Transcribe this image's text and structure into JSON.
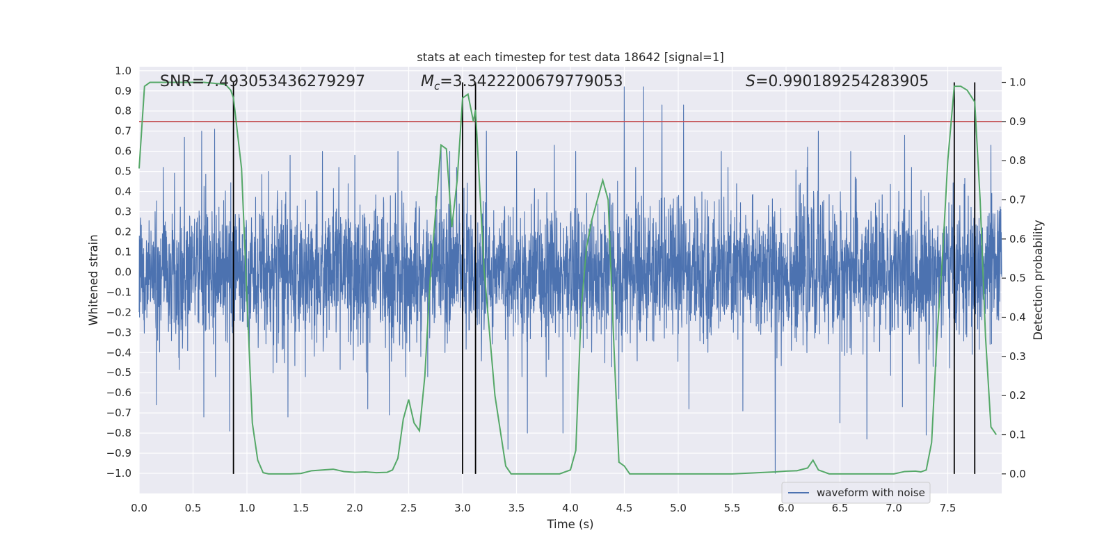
{
  "chart_data": {
    "type": "line",
    "title": "stats at each timestep for test data 18642 [signal=1]",
    "xlabel": "Time (s)",
    "ylabel": "Whitened strain",
    "y2label": "Detection probability",
    "xlim": [
      0.0,
      8.0
    ],
    "ylim": [
      -1.1,
      1.02
    ],
    "y2lim": [
      -0.05,
      1.04
    ],
    "xticks": [
      "0.0",
      "0.5",
      "1.0",
      "1.5",
      "2.0",
      "2.5",
      "3.0",
      "3.5",
      "4.0",
      "4.5",
      "5.0",
      "5.5",
      "6.0",
      "6.5",
      "7.0",
      "7.5"
    ],
    "yticks": [
      "1.0",
      "0.9",
      "0.8",
      "0.7",
      "0.6",
      "0.5",
      "0.4",
      "0.3",
      "0.2",
      "0.1",
      "0.0",
      "-0.1",
      "-0.2",
      "-0.3",
      "-0.4",
      "-0.5",
      "-0.6",
      "-0.7",
      "-0.8",
      "-0.9",
      "-1.0"
    ],
    "y2ticks": [
      "1.0",
      "0.9",
      "0.8",
      "0.7",
      "0.6",
      "0.5",
      "0.4",
      "0.3",
      "0.2",
      "0.1",
      "0.0"
    ],
    "annotations": {
      "snr_label": "SNR=7.493053436279297",
      "mc_symbol": "M",
      "mc_sub": "c",
      "mc_value": "=3.3422200679779053",
      "s_symbol": "S",
      "s_value": "=0.990189254283905"
    },
    "legend": {
      "label": "waveform with noise",
      "placement": "lower-right"
    },
    "threshold": 0.9,
    "vertical_lines": [
      0.875,
      3.0,
      3.12,
      7.56,
      7.75
    ],
    "series": [
      {
        "name": "waveform with noise",
        "axis": "left",
        "kind": "noise",
        "envelope": {
          "typical": 0.42,
          "peak_max": 0.92,
          "peak_min": -1.0
        },
        "peaks_positive": [
          [
            0.42,
            0.67
          ],
          [
            0.58,
            0.7
          ],
          [
            0.7,
            0.71
          ],
          [
            1.2,
            0.5
          ],
          [
            1.4,
            0.58
          ],
          [
            1.7,
            0.6
          ],
          [
            2.0,
            0.58
          ],
          [
            2.4,
            0.6
          ],
          [
            2.8,
            0.62
          ],
          [
            2.88,
            0.6
          ],
          [
            3.22,
            0.7
          ],
          [
            3.5,
            0.6
          ],
          [
            3.85,
            0.63
          ],
          [
            4.05,
            0.6
          ],
          [
            4.5,
            0.92
          ],
          [
            4.68,
            0.92
          ],
          [
            4.85,
            0.83
          ],
          [
            5.05,
            0.83
          ],
          [
            5.4,
            0.6
          ],
          [
            6.2,
            0.62
          ],
          [
            6.3,
            0.7
          ],
          [
            6.6,
            0.6
          ],
          [
            7.1,
            0.68
          ],
          [
            7.9,
            0.63
          ]
        ],
        "peaks_negative": [
          [
            0.16,
            -0.66
          ],
          [
            0.6,
            -0.72
          ],
          [
            0.84,
            -0.79
          ],
          [
            1.38,
            -0.72
          ],
          [
            2.12,
            -0.68
          ],
          [
            2.32,
            -0.71
          ],
          [
            3.42,
            -0.88
          ],
          [
            3.6,
            -0.8
          ],
          [
            3.93,
            -0.8
          ],
          [
            4.45,
            -0.63
          ],
          [
            5.1,
            -0.68
          ],
          [
            5.6,
            -0.69
          ],
          [
            5.9,
            -1.0
          ],
          [
            6.5,
            -0.75
          ],
          [
            6.75,
            -0.83
          ],
          [
            7.08,
            -0.67
          ],
          [
            7.3,
            -0.81
          ]
        ]
      },
      {
        "name": "",
        "axis": "right",
        "kind": "probability",
        "x": [
          0.0,
          0.05,
          0.1,
          0.2,
          0.4,
          0.6,
          0.8,
          0.85,
          0.875,
          0.95,
          1.0,
          1.05,
          1.1,
          1.15,
          1.2,
          1.3,
          1.4,
          1.5,
          1.6,
          1.7,
          1.8,
          1.9,
          2.0,
          2.1,
          2.2,
          2.3,
          2.35,
          2.4,
          2.45,
          2.5,
          2.55,
          2.6,
          2.65,
          2.7,
          2.8,
          2.85,
          2.9,
          2.95,
          3.0,
          3.05,
          3.1,
          3.12,
          3.2,
          3.3,
          3.4,
          3.45,
          3.5,
          3.6,
          3.7,
          3.8,
          3.9,
          4.0,
          4.05,
          4.1,
          4.15,
          4.2,
          4.3,
          4.35,
          4.4,
          4.45,
          4.5,
          4.55,
          4.6,
          4.7,
          4.8,
          5.0,
          5.5,
          5.9,
          6.0,
          6.1,
          6.2,
          6.25,
          6.3,
          6.4,
          6.6,
          6.8,
          7.0,
          7.1,
          7.2,
          7.25,
          7.3,
          7.35,
          7.4,
          7.45,
          7.5,
          7.56,
          7.62,
          7.68,
          7.75,
          7.8,
          7.85,
          7.9,
          7.95
        ],
        "y": [
          0.78,
          0.99,
          1.0,
          1.0,
          1.0,
          1.0,
          0.995,
          0.98,
          0.96,
          0.78,
          0.45,
          0.13,
          0.035,
          0.003,
          0.0,
          0.0,
          0.0,
          0.001,
          0.008,
          0.01,
          0.012,
          0.006,
          0.004,
          0.005,
          0.003,
          0.004,
          0.01,
          0.04,
          0.14,
          0.19,
          0.13,
          0.11,
          0.25,
          0.5,
          0.84,
          0.83,
          0.63,
          0.75,
          0.96,
          0.97,
          0.9,
          0.93,
          0.52,
          0.2,
          0.02,
          0.0,
          0.0,
          0.0,
          0.0,
          0.0,
          0.0,
          0.01,
          0.06,
          0.42,
          0.58,
          0.65,
          0.75,
          0.7,
          0.35,
          0.03,
          0.02,
          0.0,
          0.0,
          0.0,
          0.0,
          0.0,
          0.0,
          0.005,
          0.007,
          0.008,
          0.015,
          0.035,
          0.01,
          0.0,
          0.0,
          0.0,
          0.0,
          0.006,
          0.007,
          0.005,
          0.01,
          0.08,
          0.35,
          0.55,
          0.8,
          0.99,
          0.99,
          0.98,
          0.95,
          0.7,
          0.35,
          0.12,
          0.1
        ]
      }
    ]
  }
}
